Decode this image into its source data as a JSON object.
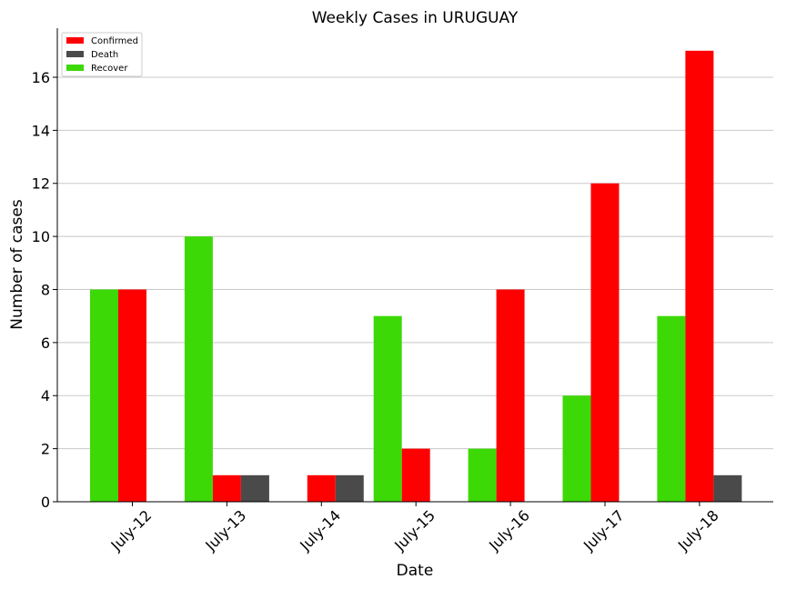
{
  "chart_data": {
    "type": "bar",
    "title": "Weekly Cases in URUGUAY",
    "xlabel": "Date",
    "ylabel": "Number of cases",
    "categories": [
      "July-12",
      "July-13",
      "July-14",
      "July-15",
      "July-16",
      "July-17",
      "July-18"
    ],
    "series": [
      {
        "name": "Recover",
        "color": "#3dd907",
        "values": [
          8,
          10,
          0,
          7,
          2,
          4,
          7
        ]
      },
      {
        "name": "Confirmed",
        "color": "#ff0000",
        "values": [
          8,
          1,
          1,
          2,
          8,
          12,
          17
        ]
      },
      {
        "name": "Death",
        "color": "#4a4a4a",
        "values": [
          0,
          1,
          1,
          0,
          0,
          0,
          1
        ]
      }
    ],
    "legend_order": [
      "Confirmed",
      "Death",
      "Recover"
    ],
    "legend_position": "top-left",
    "ylim": [
      0,
      17.85
    ],
    "yticks": [
      0,
      2,
      4,
      6,
      8,
      10,
      12,
      14,
      16
    ],
    "grid": "horizontal",
    "grid_color": "#c8c8c8"
  }
}
